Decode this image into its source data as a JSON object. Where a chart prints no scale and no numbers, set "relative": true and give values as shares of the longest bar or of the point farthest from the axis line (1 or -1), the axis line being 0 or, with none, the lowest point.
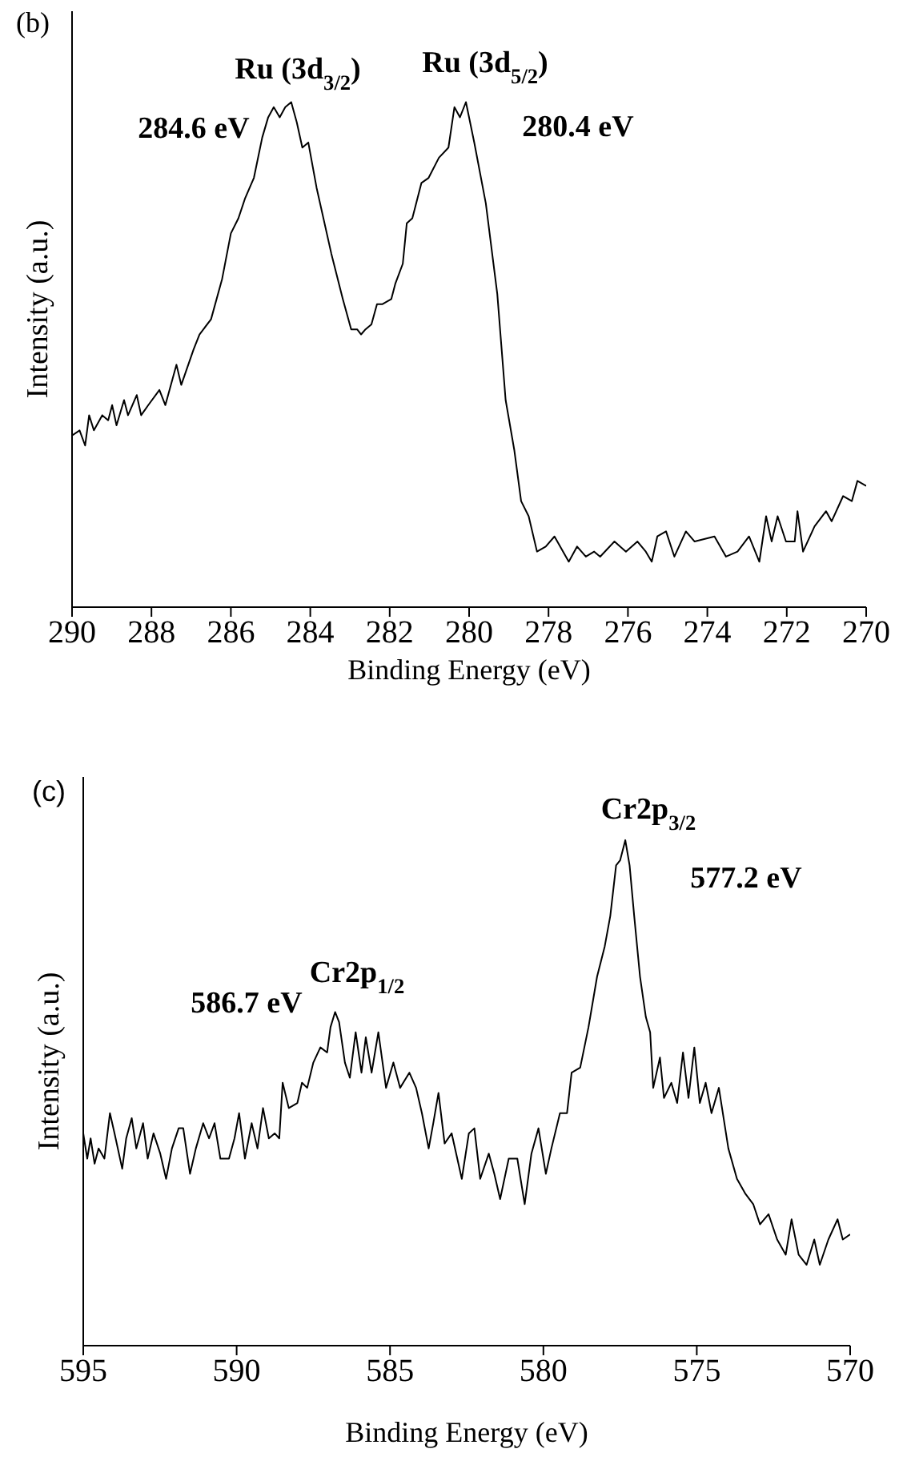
{
  "chart_data": [
    {
      "type": "line",
      "title": "(b)",
      "xlabel": "Binding Energy (eV)",
      "ylabel": "Intensity (a.u.)",
      "relative": true,
      "xlim": [
        290,
        270
      ],
      "xticks": [
        290,
        288,
        286,
        284,
        282,
        280,
        278,
        276,
        274,
        272,
        270
      ],
      "x": [
        290.0,
        289.81,
        289.67,
        289.57,
        289.45,
        289.24,
        289.09,
        288.99,
        288.88,
        288.69,
        288.59,
        288.37,
        288.26,
        288.08,
        287.8,
        287.65,
        287.37,
        287.25,
        286.94,
        286.79,
        286.5,
        286.22,
        286.0,
        285.81,
        285.64,
        285.42,
        285.21,
        285.06,
        284.92,
        284.77,
        284.63,
        284.48,
        284.34,
        284.2,
        284.05,
        283.84,
        283.47,
        283.18,
        282.97,
        282.82,
        282.72,
        282.61,
        282.46,
        282.32,
        282.18,
        281.96,
        281.86,
        281.67,
        281.57,
        281.43,
        281.2,
        281.02,
        280.76,
        280.52,
        280.37,
        280.23,
        280.08,
        279.87,
        279.58,
        279.29,
        279.08,
        278.86,
        278.69,
        278.5,
        278.29,
        278.07,
        277.85,
        277.49,
        277.28,
        277.06,
        276.85,
        276.7,
        276.34,
        276.05,
        275.76,
        275.55,
        275.4,
        275.26,
        275.04,
        274.83,
        274.54,
        274.32,
        273.82,
        273.53,
        273.24,
        272.95,
        272.69,
        272.52,
        272.38,
        272.23,
        272.02,
        271.8,
        271.73,
        271.59,
        271.3,
        271.01,
        270.87,
        270.58,
        270.36,
        270.22,
        270.0
      ],
      "series": [
        {
          "color": "#000000",
          "values": [
            0.34,
            0.35,
            0.32,
            0.38,
            0.35,
            0.38,
            0.37,
            0.4,
            0.36,
            0.41,
            0.38,
            0.42,
            0.38,
            0.4,
            0.43,
            0.4,
            0.48,
            0.44,
            0.51,
            0.54,
            0.57,
            0.65,
            0.74,
            0.77,
            0.81,
            0.85,
            0.93,
            0.97,
            0.99,
            0.97,
            0.99,
            1.0,
            0.96,
            0.91,
            0.92,
            0.83,
            0.7,
            0.61,
            0.55,
            0.55,
            0.54,
            0.55,
            0.56,
            0.6,
            0.6,
            0.61,
            0.64,
            0.68,
            0.76,
            0.77,
            0.84,
            0.85,
            0.89,
            0.91,
            0.99,
            0.97,
            1.0,
            0.92,
            0.8,
            0.62,
            0.41,
            0.31,
            0.21,
            0.18,
            0.11,
            0.12,
            0.14,
            0.09,
            0.12,
            0.1,
            0.11,
            0.1,
            0.13,
            0.11,
            0.13,
            0.11,
            0.09,
            0.14,
            0.15,
            0.1,
            0.15,
            0.13,
            0.14,
            0.1,
            0.11,
            0.14,
            0.09,
            0.18,
            0.13,
            0.18,
            0.13,
            0.13,
            0.19,
            0.11,
            0.16,
            0.19,
            0.17,
            0.22,
            0.21,
            0.25,
            0.24
          ]
        }
      ],
      "annotations": [
        "Ru (3d$_{3/2}$)",
        "Ru (3d$_{5/2}$)",
        "284.6 eV",
        "280.4 eV"
      ]
    },
    {
      "type": "line",
      "title": "(c)",
      "xlabel": "Binding Energy (eV)",
      "ylabel": "Intensity (a.u.)",
      "relative": true,
      "xlim": [
        595,
        570
      ],
      "xticks": [
        595,
        590,
        585,
        580,
        575,
        570
      ],
      "x": [
        595.0,
        594.87,
        594.76,
        594.63,
        594.5,
        594.31,
        594.13,
        593.98,
        593.73,
        593.6,
        593.42,
        593.27,
        593.05,
        592.9,
        592.71,
        592.49,
        592.3,
        592.11,
        591.89,
        591.74,
        591.52,
        591.33,
        591.09,
        590.9,
        590.72,
        590.53,
        590.25,
        590.07,
        589.92,
        589.73,
        589.51,
        589.32,
        589.14,
        588.95,
        588.76,
        588.61,
        588.5,
        588.3,
        588.02,
        587.87,
        587.7,
        587.5,
        587.27,
        587.05,
        586.94,
        586.79,
        586.66,
        586.47,
        586.31,
        586.12,
        585.93,
        585.79,
        585.6,
        585.38,
        585.13,
        584.89,
        584.67,
        584.37,
        584.15,
        583.96,
        583.74,
        583.59,
        583.42,
        583.22,
        582.99,
        582.66,
        582.43,
        582.25,
        582.06,
        581.78,
        581.6,
        581.41,
        581.13,
        580.85,
        580.61,
        580.39,
        580.16,
        579.92,
        579.74,
        579.46,
        579.23,
        579.08,
        578.8,
        578.53,
        578.25,
        578.0,
        577.82,
        577.63,
        577.5,
        577.33,
        577.19,
        577.04,
        576.85,
        576.66,
        576.52,
        576.42,
        576.2,
        576.07,
        575.83,
        575.64,
        575.45,
        575.27,
        575.08,
        574.9,
        574.71,
        574.52,
        574.28,
        573.97,
        573.69,
        573.41,
        573.16,
        572.94,
        572.66,
        572.38,
        572.1,
        571.91,
        571.68,
        571.42,
        571.17,
        570.99,
        570.71,
        570.41,
        570.24,
        570.0
      ],
      "series": [
        {
          "color": "#000000",
          "values": [
            0.42,
            0.37,
            0.41,
            0.36,
            0.39,
            0.37,
            0.46,
            0.42,
            0.35,
            0.41,
            0.45,
            0.39,
            0.44,
            0.37,
            0.42,
            0.38,
            0.33,
            0.39,
            0.43,
            0.43,
            0.34,
            0.39,
            0.44,
            0.41,
            0.44,
            0.37,
            0.37,
            0.41,
            0.46,
            0.37,
            0.44,
            0.39,
            0.47,
            0.41,
            0.42,
            0.41,
            0.52,
            0.47,
            0.48,
            0.52,
            0.51,
            0.56,
            0.59,
            0.58,
            0.63,
            0.66,
            0.64,
            0.56,
            0.53,
            0.62,
            0.54,
            0.61,
            0.54,
            0.62,
            0.51,
            0.56,
            0.51,
            0.54,
            0.51,
            0.46,
            0.39,
            0.44,
            0.5,
            0.4,
            0.42,
            0.33,
            0.42,
            0.43,
            0.33,
            0.38,
            0.34,
            0.29,
            0.37,
            0.37,
            0.28,
            0.38,
            0.43,
            0.34,
            0.39,
            0.46,
            0.46,
            0.54,
            0.55,
            0.63,
            0.73,
            0.79,
            0.85,
            0.95,
            0.96,
            1.0,
            0.95,
            0.85,
            0.73,
            0.65,
            0.62,
            0.51,
            0.57,
            0.49,
            0.52,
            0.48,
            0.58,
            0.49,
            0.59,
            0.48,
            0.52,
            0.46,
            0.51,
            0.39,
            0.33,
            0.3,
            0.28,
            0.24,
            0.26,
            0.21,
            0.18,
            0.25,
            0.18,
            0.16,
            0.21,
            0.16,
            0.21,
            0.25,
            0.21,
            0.22
          ]
        }
      ],
      "annotations": [
        "Cr2p$_{3/2}$",
        "577.2 eV",
        "586.7 eV",
        "Cr2p$_{1/2}$"
      ]
    }
  ]
}
